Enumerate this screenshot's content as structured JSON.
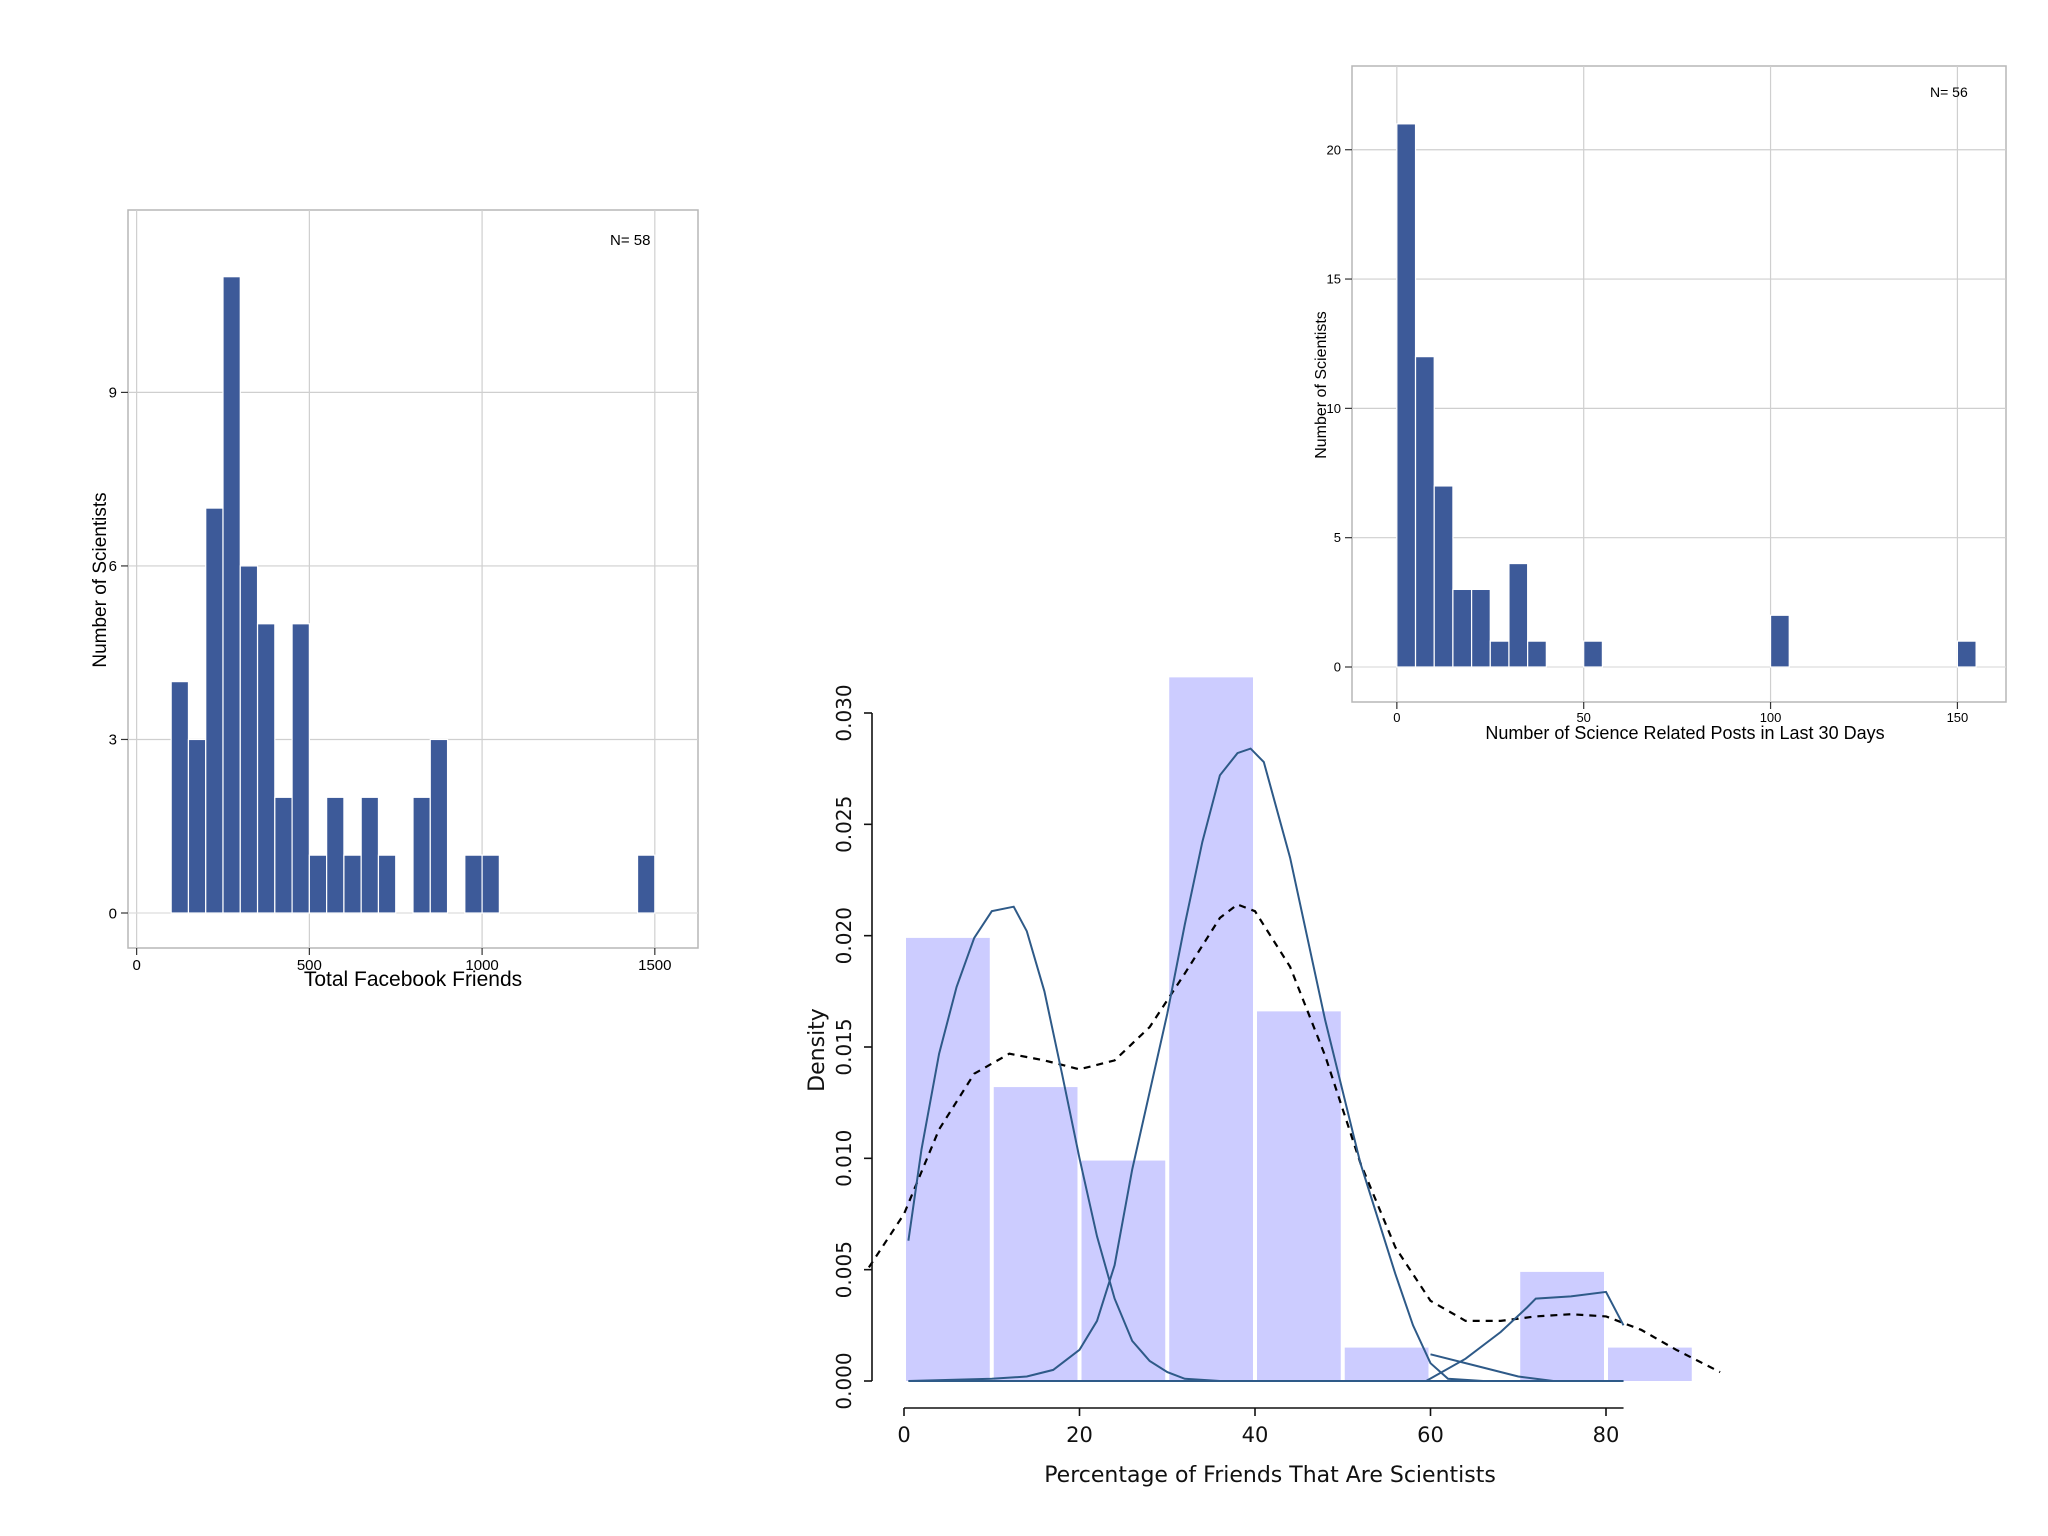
{
  "chart_data": [
    {
      "type": "bar",
      "xlabel": "Total Facebook Friends",
      "ylabel": "Number of Scientists",
      "annotation": "N= 58",
      "xlim": [
        -25,
        1625
      ],
      "ylim": [
        0,
        11.6
      ],
      "xticks": [
        0,
        500,
        1000,
        1500
      ],
      "yticks": [
        0,
        3,
        6,
        9
      ],
      "bin_width": 50,
      "bins": [
        {
          "x0": 100,
          "value": 4
        },
        {
          "x0": 150,
          "value": 3
        },
        {
          "x0": 200,
          "value": 7
        },
        {
          "x0": 250,
          "value": 11
        },
        {
          "x0": 300,
          "value": 6
        },
        {
          "x0": 350,
          "value": 5
        },
        {
          "x0": 400,
          "value": 2
        },
        {
          "x0": 450,
          "value": 5
        },
        {
          "x0": 500,
          "value": 1
        },
        {
          "x0": 550,
          "value": 2
        },
        {
          "x0": 600,
          "value": 1
        },
        {
          "x0": 650,
          "value": 2
        },
        {
          "x0": 700,
          "value": 1
        },
        {
          "x0": 800,
          "value": 2
        },
        {
          "x0": 850,
          "value": 3
        },
        {
          "x0": 950,
          "value": 1
        },
        {
          "x0": 1000,
          "value": 1
        },
        {
          "x0": 1450,
          "value": 1
        }
      ],
      "grid": true,
      "color": "#3d5a99"
    },
    {
      "type": "bar",
      "xlabel": "Number of Science Related Posts in Last 30 Days",
      "ylabel": "Number of Scientists",
      "annotation": "N= 56",
      "xlim": [
        -12,
        163
      ],
      "ylim": [
        0,
        22
      ],
      "xticks": [
        0,
        50,
        100,
        150
      ],
      "yticks": [
        0,
        5,
        10,
        15,
        20
      ],
      "bin_width": 5,
      "bins": [
        {
          "x0": 0,
          "value": 21
        },
        {
          "x0": 5,
          "value": 12
        },
        {
          "x0": 10,
          "value": 7
        },
        {
          "x0": 15,
          "value": 3
        },
        {
          "x0": 20,
          "value": 3
        },
        {
          "x0": 25,
          "value": 1
        },
        {
          "x0": 30,
          "value": 4
        },
        {
          "x0": 35,
          "value": 1
        },
        {
          "x0": 50,
          "value": 1
        },
        {
          "x0": 100,
          "value": 2
        },
        {
          "x0": 150,
          "value": 1
        }
      ],
      "grid": true,
      "color": "#3d5a99"
    },
    {
      "type": "bar",
      "xlabel": "Percentage of Friends That Are Scientists",
      "ylabel": "Density",
      "xlim": [
        -3,
        93
      ],
      "ylim": [
        0,
        0.032
      ],
      "xticks": [
        0,
        20,
        40,
        60,
        80
      ],
      "yticks": [
        0,
        0.005,
        0.01,
        0.015,
        0.02,
        0.025,
        0.03
      ],
      "ytick_labels": [
        "0.000",
        "0.005",
        "0.010",
        "0.015",
        "0.020",
        "0.025",
        "0.030"
      ],
      "bin_width": 10,
      "bins": [
        {
          "x0": 0,
          "value": 0.0199
        },
        {
          "x0": 10,
          "value": 0.0132
        },
        {
          "x0": 20,
          "value": 0.0099
        },
        {
          "x0": 30,
          "value": 0.0316
        },
        {
          "x0": 40,
          "value": 0.0166
        },
        {
          "x0": 50,
          "value": 0.0015
        },
        {
          "x0": 60,
          "value": 0
        },
        {
          "x0": 70,
          "value": 0.0049
        },
        {
          "x0": 80,
          "value": 0.0015
        }
      ],
      "color": "#ccccff",
      "lines": [
        {
          "style": "dashed",
          "color": "#000000",
          "points": [
            [
              -4,
              0.0051
            ],
            [
              0,
              0.0075
            ],
            [
              4,
              0.0113
            ],
            [
              8,
              0.0138
            ],
            [
              12,
              0.0147
            ],
            [
              16,
              0.0144
            ],
            [
              20,
              0.014
            ],
            [
              24,
              0.0144
            ],
            [
              28,
              0.0159
            ],
            [
              32,
              0.0183
            ],
            [
              36,
              0.0208
            ],
            [
              38,
              0.0214
            ],
            [
              40,
              0.0211
            ],
            [
              44,
              0.0186
            ],
            [
              48,
              0.0146
            ],
            [
              52,
              0.0098
            ],
            [
              56,
              0.006
            ],
            [
              60,
              0.0036
            ],
            [
              64,
              0.0027
            ],
            [
              68,
              0.0027
            ],
            [
              72,
              0.0029
            ],
            [
              76,
              0.003
            ],
            [
              80,
              0.0029
            ],
            [
              84,
              0.0023
            ],
            [
              88,
              0.0014
            ],
            [
              93,
              0.0004
            ]
          ]
        },
        {
          "style": "solid",
          "color": "#2e5a88",
          "points": [
            [
              0.5,
              0.0063
            ],
            [
              2,
              0.0104
            ],
            [
              4,
              0.0147
            ],
            [
              6,
              0.0177
            ],
            [
              8,
              0.0199
            ],
            [
              10,
              0.0211
            ],
            [
              12.5,
              0.0213
            ],
            [
              14,
              0.0202
            ],
            [
              16,
              0.0175
            ],
            [
              18,
              0.0138
            ],
            [
              20,
              0.01
            ],
            [
              22,
              0.0065
            ],
            [
              24,
              0.0037
            ],
            [
              26,
              0.0018
            ],
            [
              28,
              0.0009
            ],
            [
              30,
              0.0004
            ],
            [
              32,
              0.0001
            ],
            [
              36,
              0
            ]
          ]
        },
        {
          "style": "solid",
          "color": "#2e5a88",
          "points": [
            [
              0.5,
              0
            ],
            [
              10,
              0.0001
            ],
            [
              14,
              0.0002
            ],
            [
              17,
              0.0005
            ],
            [
              20,
              0.0014
            ],
            [
              22,
              0.0027
            ],
            [
              24,
              0.0052
            ],
            [
              26,
              0.0095
            ],
            [
              30,
              0.0165
            ],
            [
              32,
              0.0205
            ],
            [
              34,
              0.0242
            ],
            [
              36,
              0.0272
            ],
            [
              38,
              0.0282
            ],
            [
              39.5,
              0.0284
            ],
            [
              41,
              0.0278
            ],
            [
              44,
              0.0235
            ],
            [
              48,
              0.0162
            ],
            [
              52,
              0.0098
            ],
            [
              56,
              0.0048
            ],
            [
              58,
              0.0025
            ],
            [
              60,
              0.0008
            ],
            [
              62,
              0.0001
            ],
            [
              66,
              0
            ]
          ]
        },
        {
          "style": "solid",
          "color": "#2e5a88",
          "points": [
            [
              59.5,
              0
            ],
            [
              64,
              0.001
            ],
            [
              68,
              0.0022
            ],
            [
              71,
              0.0033
            ],
            [
              72,
              0.0037
            ],
            [
              76,
              0.0038
            ],
            [
              80,
              0.004
            ],
            [
              82,
              0.0025
            ]
          ]
        },
        {
          "style": "solid",
          "color": "#2e5a88",
          "points": [
            [
              60,
              0.0012
            ],
            [
              65,
              0.0007
            ],
            [
              70,
              0.0002
            ],
            [
              74,
              0
            ]
          ]
        }
      ],
      "baseline_to": 82
    }
  ]
}
